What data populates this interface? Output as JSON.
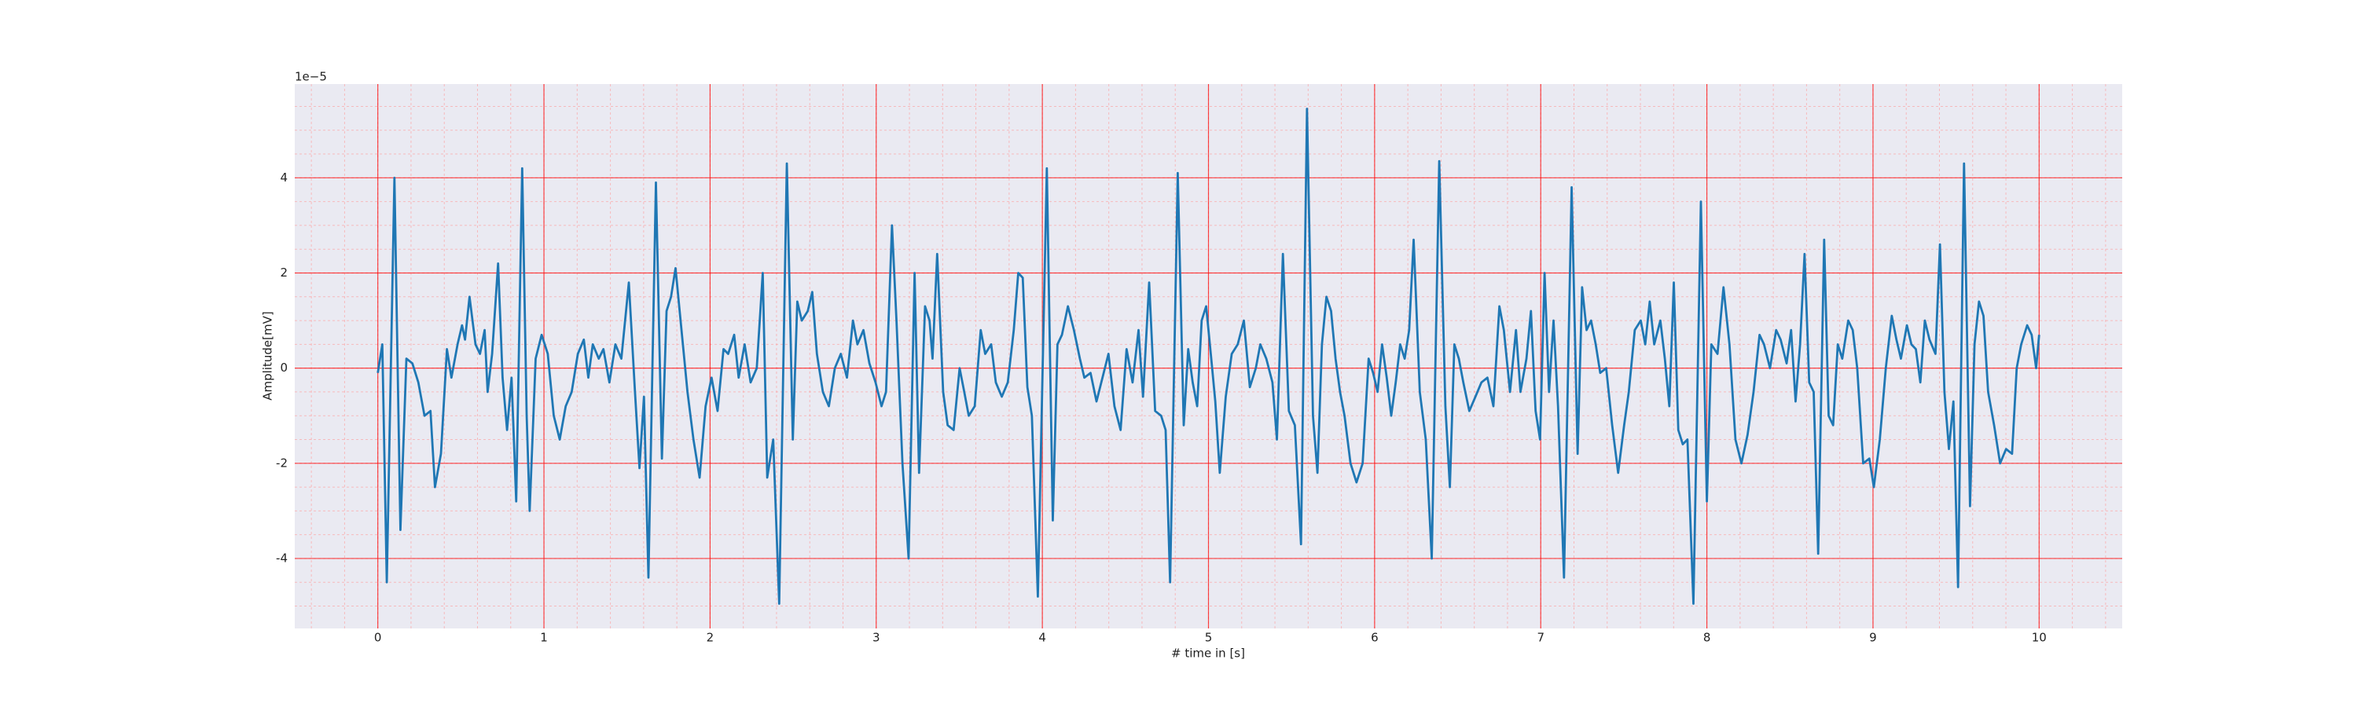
{
  "chart_data": {
    "type": "line",
    "xlabel": "# time in [s]",
    "ylabel": "Amplitude[mV]",
    "y_offset_label": "1e−5",
    "xlim": [
      -0.5,
      10.5
    ],
    "ylim": [
      -5.47,
      5.97
    ],
    "xticks": [
      0,
      1,
      2,
      3,
      4,
      5,
      6,
      7,
      8,
      9,
      10
    ],
    "yticks": [
      -4,
      -2,
      0,
      2,
      4
    ],
    "xminorticks": [
      -0.4,
      -0.2,
      0,
      0.2,
      0.4,
      0.6,
      0.8,
      1,
      1.2,
      1.4,
      1.6,
      1.8,
      2,
      2.2,
      2.4,
      2.6,
      2.8,
      3,
      3.2,
      3.4,
      3.6,
      3.8,
      4,
      4.2,
      4.4,
      4.6,
      4.8,
      5,
      5.2,
      5.4,
      5.6,
      5.8,
      6,
      6.2,
      6.4,
      6.6,
      6.8,
      7,
      7.2,
      7.4,
      7.6,
      7.8,
      8,
      8.2,
      8.4,
      8.6,
      8.8,
      9,
      9.2,
      9.4,
      9.6,
      9.8,
      10,
      10.2,
      10.4
    ],
    "yminorticks": [
      -5,
      -4.5,
      -4,
      -3.5,
      -3,
      -2.5,
      -2,
      -1.5,
      -1,
      -0.5,
      0,
      0.5,
      1,
      1.5,
      2,
      2.5,
      3,
      3.5,
      4,
      4.5,
      5,
      5.5
    ],
    "grid": true,
    "grid_color": "#ff0000",
    "minor_grid_color": "#ff9999",
    "background": "#eaeaf2",
    "x": [
      0,
      0.027,
      0.054,
      0.1,
      0.136,
      0.172,
      0.208,
      0.244,
      0.281,
      0.317,
      0.344,
      0.38,
      0.416,
      0.443,
      0.48,
      0.507,
      0.525,
      0.552,
      0.588,
      0.615,
      0.643,
      0.661,
      0.688,
      0.724,
      0.751,
      0.778,
      0.805,
      0.833,
      0.869,
      0.896,
      0.914,
      0.95,
      0.986,
      1.023,
      1.059,
      1.095,
      1.131,
      1.167,
      1.204,
      1.24,
      1.267,
      1.294,
      1.33,
      1.358,
      1.394,
      1.43,
      1.466,
      1.511,
      1.548,
      1.575,
      1.602,
      1.629,
      1.674,
      1.71,
      1.738,
      1.765,
      1.792,
      1.828,
      1.864,
      1.9,
      1.937,
      1.973,
      2.009,
      2.045,
      2.081,
      2.109,
      2.145,
      2.172,
      2.208,
      2.244,
      2.281,
      2.317,
      2.344,
      2.38,
      2.416,
      2.462,
      2.498,
      2.525,
      2.552,
      2.588,
      2.615,
      2.643,
      2.679,
      2.715,
      2.751,
      2.787,
      2.824,
      2.86,
      2.887,
      2.923,
      2.959,
      2.996,
      3.032,
      3.059,
      3.095,
      3.122,
      3.158,
      3.195,
      3.231,
      3.258,
      3.294,
      3.321,
      3.339,
      3.367,
      3.403,
      3.43,
      3.466,
      3.502,
      3.53,
      3.557,
      3.593,
      3.629,
      3.656,
      3.692,
      3.72,
      3.756,
      3.792,
      3.828,
      3.855,
      3.882,
      3.91,
      3.937,
      3.973,
      4.027,
      4.063,
      4.091,
      4.118,
      4.154,
      4.19,
      4.226,
      4.253,
      4.29,
      4.326,
      4.362,
      4.398,
      4.434,
      4.471,
      4.507,
      4.543,
      4.579,
      4.606,
      4.643,
      4.679,
      4.715,
      4.742,
      4.769,
      4.815,
      4.851,
      4.878,
      4.905,
      4.932,
      4.959,
      4.986,
      5.014,
      5.041,
      5.068,
      5.104,
      5.14,
      5.176,
      5.213,
      5.249,
      5.285,
      5.312,
      5.348,
      5.385,
      5.412,
      5.448,
      5.484,
      5.52,
      5.557,
      5.593,
      5.629,
      5.656,
      5.683,
      5.71,
      5.738,
      5.765,
      5.792,
      5.819,
      5.855,
      5.891,
      5.928,
      5.964,
      5.991,
      6.018,
      6.045,
      6.073,
      6.1,
      6.127,
      6.154,
      6.181,
      6.208,
      6.235,
      6.272,
      6.308,
      6.344,
      6.389,
      6.426,
      6.453,
      6.48,
      6.507,
      6.534,
      6.57,
      6.607,
      6.643,
      6.679,
      6.715,
      6.751,
      6.778,
      6.815,
      6.851,
      6.878,
      6.914,
      6.941,
      6.969,
      6.996,
      7.023,
      7.05,
      7.077,
      7.104,
      7.14,
      7.186,
      7.222,
      7.249,
      7.276,
      7.303,
      7.331,
      7.358,
      7.394,
      7.43,
      7.466,
      7.502,
      7.53,
      7.566,
      7.602,
      7.629,
      7.656,
      7.683,
      7.72,
      7.747,
      7.774,
      7.801,
      7.828,
      7.855,
      7.883,
      7.919,
      7.964,
      8.0,
      8.027,
      8.064,
      8.1,
      8.136,
      8.172,
      8.208,
      8.245,
      8.281,
      8.317,
      8.344,
      8.38,
      8.417,
      8.444,
      8.48,
      8.507,
      8.534,
      8.561,
      8.588,
      8.616,
      8.643,
      8.67,
      8.706,
      8.733,
      8.76,
      8.788,
      8.815,
      8.851,
      8.878,
      8.905,
      8.941,
      8.978,
      9.005,
      9.041,
      9.077,
      9.113,
      9.141,
      9.168,
      9.204,
      9.231,
      9.258,
      9.285,
      9.312,
      9.34,
      9.376,
      9.403,
      9.43,
      9.457,
      9.484,
      9.512,
      9.548,
      9.584,
      9.611,
      9.638,
      9.665,
      9.693,
      9.729,
      9.765,
      9.801,
      9.837,
      9.865,
      9.892,
      9.928,
      9.955,
      9.982,
      10.0
    ],
    "series": [
      {
        "color": "#1f77b4",
        "values": [
          -0.1,
          0.5,
          -4.5,
          4.0,
          -3.4,
          0.2,
          0.1,
          -0.3,
          -1.0,
          -0.9,
          -2.5,
          -1.8,
          0.4,
          -0.2,
          0.5,
          0.9,
          0.6,
          1.5,
          0.5,
          0.3,
          0.8,
          -0.5,
          0.3,
          2.2,
          -0.2,
          -1.3,
          -0.2,
          -2.8,
          4.2,
          -1.0,
          -3.0,
          0.2,
          0.7,
          0.3,
          -1.0,
          -1.5,
          -0.8,
          -0.5,
          0.3,
          0.6,
          -0.2,
          0.5,
          0.2,
          0.4,
          -0.3,
          0.5,
          0.2,
          1.8,
          -0.5,
          -2.1,
          -0.6,
          -4.4,
          3.9,
          -1.9,
          1.2,
          1.5,
          2.1,
          0.8,
          -0.5,
          -1.5,
          -2.3,
          -0.8,
          -0.2,
          -0.9,
          0.4,
          0.3,
          0.7,
          -0.2,
          0.5,
          -0.3,
          0.0,
          2.0,
          -2.3,
          -1.5,
          -4.95,
          4.3,
          -1.5,
          1.4,
          1.0,
          1.2,
          1.6,
          0.3,
          -0.5,
          -0.8,
          0.0,
          0.3,
          -0.2,
          1.0,
          0.5,
          0.8,
          0.1,
          -0.3,
          -0.8,
          -0.5,
          3.0,
          1.0,
          -2.0,
          -4.0,
          2.0,
          -2.2,
          1.3,
          1.0,
          0.2,
          2.4,
          -0.5,
          -1.2,
          -1.3,
          0.0,
          -0.5,
          -1.0,
          -0.8,
          0.8,
          0.3,
          0.5,
          -0.3,
          -0.6,
          -0.3,
          0.8,
          2.0,
          1.9,
          -0.4,
          -1.0,
          -4.8,
          4.2,
          -3.2,
          0.5,
          0.7,
          1.3,
          0.8,
          0.2,
          -0.2,
          -0.1,
          -0.7,
          -0.2,
          0.3,
          -0.8,
          -1.3,
          0.4,
          -0.3,
          0.8,
          -0.6,
          1.8,
          -0.9,
          -1.0,
          -1.3,
          -4.5,
          4.1,
          -1.2,
          0.4,
          -0.3,
          -0.8,
          1.0,
          1.3,
          0.3,
          -0.7,
          -2.2,
          -0.6,
          0.3,
          0.5,
          1.0,
          -0.4,
          0.0,
          0.5,
          0.2,
          -0.3,
          -1.5,
          2.4,
          -0.9,
          -1.2,
          -3.7,
          5.45,
          -1.0,
          -2.2,
          0.5,
          1.5,
          1.2,
          0.2,
          -0.5,
          -1.0,
          -2.0,
          -2.4,
          -2.0,
          0.2,
          -0.1,
          -0.5,
          0.5,
          -0.2,
          -1.0,
          -0.3,
          0.5,
          0.2,
          0.8,
          2.7,
          -0.5,
          -1.5,
          -4.0,
          4.35,
          -0.8,
          -2.5,
          0.5,
          0.2,
          -0.3,
          -0.9,
          -0.6,
          -0.3,
          -0.2,
          -0.8,
          1.3,
          0.8,
          -0.5,
          0.8,
          -0.5,
          0.2,
          1.2,
          -0.9,
          -1.5,
          2.0,
          -0.5,
          1.0,
          -0.8,
          -4.4,
          3.8,
          -1.8,
          1.7,
          0.8,
          1.0,
          0.5,
          -0.1,
          0.0,
          -1.2,
          -2.2,
          -1.2,
          -0.5,
          0.8,
          1.0,
          0.5,
          1.4,
          0.5,
          1.0,
          0.2,
          -0.8,
          1.8,
          -1.3,
          -1.6,
          -1.5,
          -4.95,
          3.5,
          -2.8,
          0.5,
          0.3,
          1.7,
          0.5,
          -1.5,
          -2.0,
          -1.4,
          -0.5,
          0.7,
          0.5,
          0.0,
          0.8,
          0.6,
          0.1,
          0.8,
          -0.7,
          0.5,
          2.4,
          -0.3,
          -0.5,
          -3.9,
          2.7,
          -1.0,
          -1.2,
          0.5,
          0.2,
          1.0,
          0.8,
          0.0,
          -2.0,
          -1.9,
          -2.5,
          -1.5,
          0.0,
          1.1,
          0.6,
          0.2,
          0.9,
          0.5,
          0.4,
          -0.3,
          1.0,
          0.6,
          0.3,
          2.6,
          -0.5,
          -1.7,
          -0.7,
          -4.6,
          4.3,
          -2.9,
          0.5,
          1.4,
          1.1,
          -0.5,
          -1.2,
          -2.0,
          -1.7,
          -1.8,
          0.0,
          0.5,
          0.9,
          0.7,
          0.0,
          0.7
        ]
      }
    ]
  }
}
